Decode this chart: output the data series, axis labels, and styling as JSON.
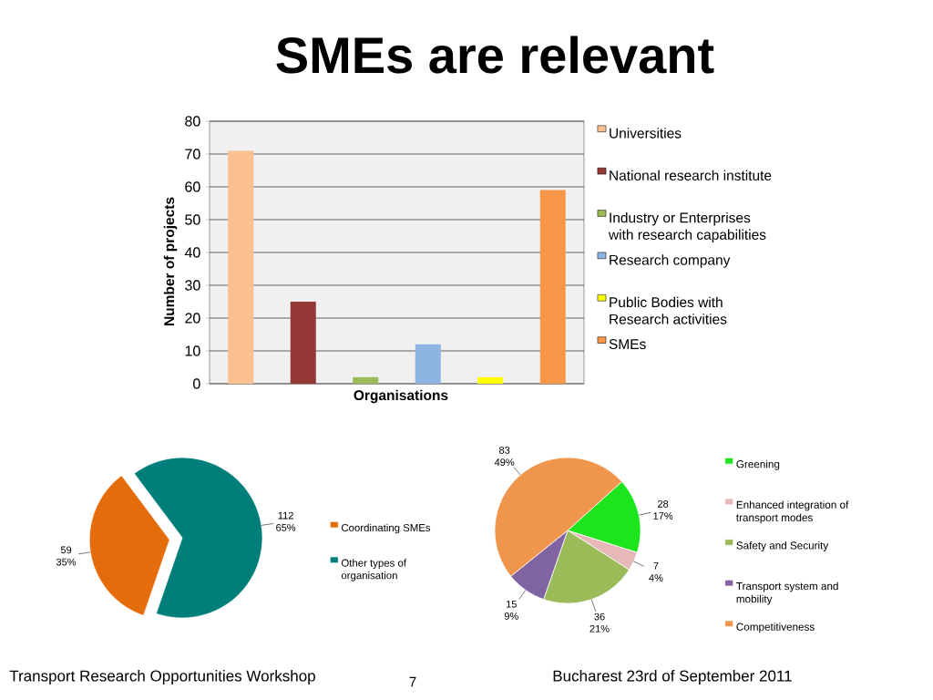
{
  "chart_data": [
    {
      "type": "bar",
      "title": "SMEs are relevant",
      "xlabel": "Organisations",
      "ylabel": "Number of projects",
      "categories": [
        null
      ],
      "series": [
        {
          "name": "Universities",
          "color": "#fac090",
          "values": [
            71
          ]
        },
        {
          "name": "National research institute",
          "color": "#953735",
          "values": [
            25
          ]
        },
        {
          "name": "Industry or Enterprises with research capabilities",
          "color": "#9bbb59",
          "values": [
            2
          ]
        },
        {
          "name": "Research company",
          "color": "#8eb4e3",
          "values": [
            12
          ]
        },
        {
          "name": "Public Bodies with Research activities",
          "color": "#ffff00",
          "values": [
            2
          ]
        },
        {
          "name": "SMEs",
          "color": "#f79646",
          "values": [
            59
          ]
        }
      ],
      "ylim": [
        0,
        80
      ],
      "yticks": [
        0,
        10,
        20,
        30,
        40,
        50,
        60,
        70,
        80
      ],
      "grid": "y",
      "legend": "right",
      "tick_labels": "y"
    },
    {
      "type": "pie",
      "categories": [
        "Coordinating SMEs",
        "Other types of organisation"
      ],
      "values": [
        59,
        112
      ],
      "colors": [
        "#e46c0a",
        "#007f7a"
      ],
      "value_labels": [
        "59 35%",
        "112 65%"
      ],
      "legend": "right",
      "annotations": [
        "Transport Research Opportunities Workshop",
        "7"
      ]
    },
    {
      "type": "pie",
      "categories": [
        "Greening",
        "Enhanced integration of transport modes",
        "Safety and Security",
        "Transport system and mobility",
        "Competitiveness"
      ],
      "values": [
        28,
        7,
        36,
        15,
        83
      ],
      "colors": [
        "#1de51d",
        "#e6b9b8",
        "#9bbb59",
        "#8064a2",
        "#f0954c"
      ],
      "value_labels": [
        "28 17%",
        "7 4%",
        "36 21%",
        "15 9%",
        "83 49%"
      ],
      "legend": "right",
      "annotations": [
        "Bucharest 23rd of September 2011"
      ]
    }
  ]
}
